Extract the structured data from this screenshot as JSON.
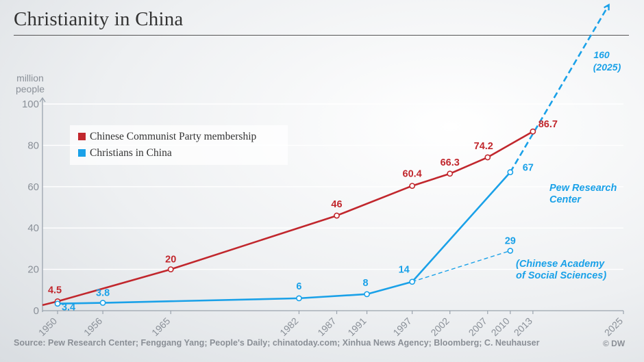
{
  "title": "Christianity in China",
  "source": "Source: Pew Research Center; Fenggang Yang; People's Daily; chinatoday.com; Xinhua News Agency; Bloomberg; C. Neuhauser",
  "credit": "© DW",
  "legend": {
    "items": [
      {
        "label": "Chinese Communist Party membership",
        "color": "#c1272d"
      },
      {
        "label": "Christians in China",
        "color": "#1aa1e8"
      }
    ]
  },
  "chart_data": {
    "type": "line",
    "ylabel": "million people",
    "ylim": [
      0,
      100
    ],
    "yticks": [
      0,
      20,
      40,
      60,
      80,
      100
    ],
    "xlim": [
      1948,
      2025
    ],
    "xticks": [
      1950,
      1956,
      1965,
      1982,
      1987,
      1991,
      1997,
      2002,
      2007,
      2010,
      2013,
      2025
    ],
    "grid": true,
    "legend_position": "top-left",
    "series": [
      {
        "name": "Chinese Communist Party membership",
        "color": "#c1272d",
        "points": [
          [
            1950,
            4.5
          ],
          [
            1965,
            20
          ],
          [
            1987,
            46
          ],
          [
            1997,
            60.4
          ],
          [
            2002,
            66.3
          ],
          [
            2007,
            74.2
          ],
          [
            2013,
            86.7
          ]
        ],
        "labels": [
          "4.5",
          "20",
          "46",
          "60.4",
          "66.3",
          "74.2",
          "86.7"
        ]
      },
      {
        "name": "Christians in China",
        "color": "#1aa1e8",
        "points": [
          [
            1950,
            3.4
          ],
          [
            1956,
            3.8
          ],
          [
            1982,
            6
          ],
          [
            1991,
            8
          ],
          [
            1997,
            14
          ],
          [
            2010,
            67
          ]
        ],
        "labels": [
          "3.4",
          "3.8",
          "6",
          "8",
          "14",
          "67"
        ]
      }
    ],
    "projections": [
      {
        "from": [
          2010,
          67
        ],
        "to": [
          2025,
          160
        ],
        "color": "#1aa1e8",
        "arrow": true,
        "labels": [
          "160",
          "(2025)"
        ],
        "source_labels": [
          "Pew Research",
          "Center"
        ]
      },
      {
        "from": [
          1997,
          14
        ],
        "to": [
          2010,
          29
        ],
        "color": "#1aa1e8",
        "arrow": false,
        "labels": [
          "29"
        ],
        "source_labels": [
          "(Chinese Academy",
          "of Social Sciences)"
        ]
      }
    ]
  }
}
